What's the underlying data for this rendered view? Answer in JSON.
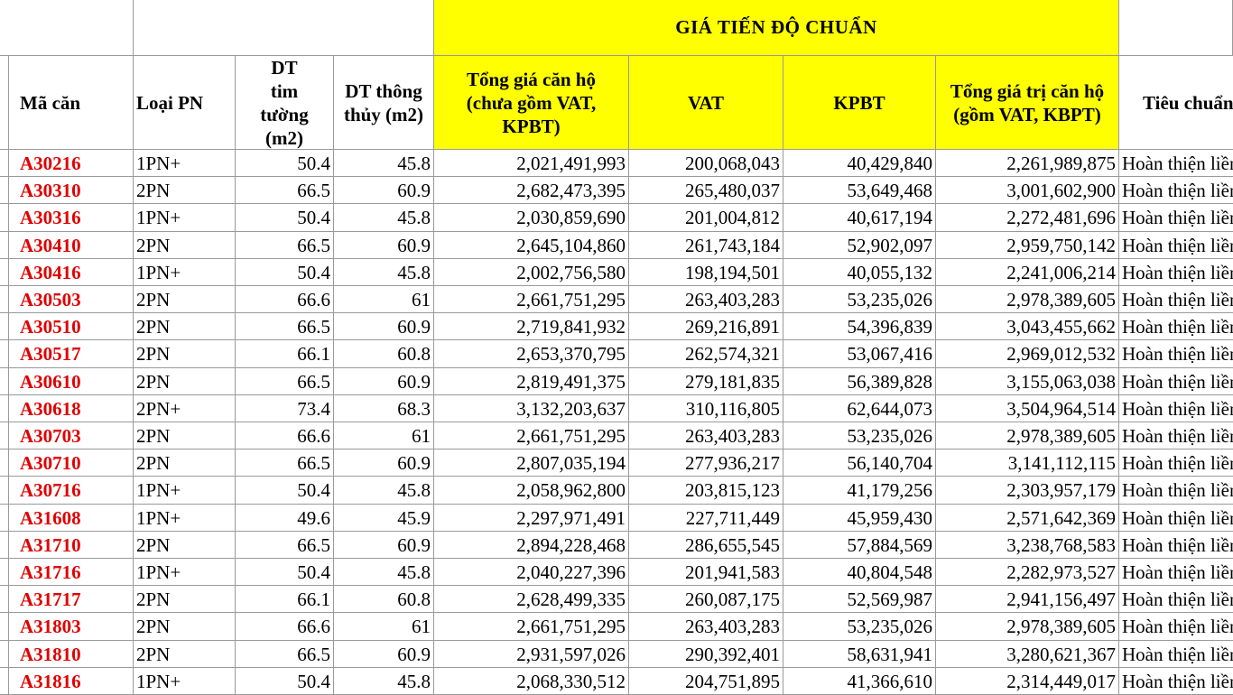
{
  "banner": {
    "title": "GIÁ TIẾN ĐỘ CHUẨN"
  },
  "headers": {
    "ma_can": "Mã căn",
    "loai_pn": "Loại PN",
    "dt_tim_tuong": "DT tim tường (m2)",
    "dt_thong_thuy": "DT thông thủy (m2)",
    "tong_gia": "Tổng giá căn hộ (chưa gồm VAT, KPBT)",
    "vat": "VAT",
    "kpbt": "KPBT",
    "tong_gia_tri": "Tổng giá trị căn hộ (gồm VAT, KBPT)",
    "tieu_chuan": "Tiêu chuẩn"
  },
  "rows": [
    {
      "ma": "A30216",
      "loai": "1PN+",
      "tim": "50.4",
      "thong": "45.8",
      "tong": "2,021,491,993",
      "vat": "200,068,043",
      "kpbt": "40,429,840",
      "tri": "2,261,989,875",
      "tc": "Hoàn thiện liền tường"
    },
    {
      "ma": "A30310",
      "loai": "2PN",
      "tim": "66.5",
      "thong": "60.9",
      "tong": "2,682,473,395",
      "vat": "265,480,037",
      "kpbt": "53,649,468",
      "tri": "3,001,602,900",
      "tc": "Hoàn thiện liền tường"
    },
    {
      "ma": "A30316",
      "loai": "1PN+",
      "tim": "50.4",
      "thong": "45.8",
      "tong": "2,030,859,690",
      "vat": "201,004,812",
      "kpbt": "40,617,194",
      "tri": "2,272,481,696",
      "tc": "Hoàn thiện liền tường"
    },
    {
      "ma": "A30410",
      "loai": "2PN",
      "tim": "66.5",
      "thong": "60.9",
      "tong": "2,645,104,860",
      "vat": "261,743,184",
      "kpbt": "52,902,097",
      "tri": "2,959,750,142",
      "tc": "Hoàn thiện liền tường"
    },
    {
      "ma": "A30416",
      "loai": "1PN+",
      "tim": "50.4",
      "thong": "45.8",
      "tong": "2,002,756,580",
      "vat": "198,194,501",
      "kpbt": "40,055,132",
      "tri": "2,241,006,214",
      "tc": "Hoàn thiện liền tường"
    },
    {
      "ma": "A30503",
      "loai": "2PN",
      "tim": "66.6",
      "thong": "61",
      "tong": "2,661,751,295",
      "vat": "263,403,283",
      "kpbt": "53,235,026",
      "tri": "2,978,389,605",
      "tc": "Hoàn thiện liền tường"
    },
    {
      "ma": "A30510",
      "loai": "2PN",
      "tim": "66.5",
      "thong": "60.9",
      "tong": "2,719,841,932",
      "vat": "269,216,891",
      "kpbt": "54,396,839",
      "tri": "3,043,455,662",
      "tc": "Hoàn thiện liền tường"
    },
    {
      "ma": "A30517",
      "loai": "2PN",
      "tim": "66.1",
      "thong": "60.8",
      "tong": "2,653,370,795",
      "vat": "262,574,321",
      "kpbt": "53,067,416",
      "tri": "2,969,012,532",
      "tc": "Hoàn thiện liền tường"
    },
    {
      "ma": "A30610",
      "loai": "2PN",
      "tim": "66.5",
      "thong": "60.9",
      "tong": "2,819,491,375",
      "vat": "279,181,835",
      "kpbt": "56,389,828",
      "tri": "3,155,063,038",
      "tc": "Hoàn thiện liền tường"
    },
    {
      "ma": "A30618",
      "loai": "2PN+",
      "tim": "73.4",
      "thong": "68.3",
      "tong": "3,132,203,637",
      "vat": "310,116,805",
      "kpbt": "62,644,073",
      "tri": "3,504,964,514",
      "tc": "Hoàn thiện liền tường"
    },
    {
      "ma": "A30703",
      "loai": "2PN",
      "tim": "66.6",
      "thong": "61",
      "tong": "2,661,751,295",
      "vat": "263,403,283",
      "kpbt": "53,235,026",
      "tri": "2,978,389,605",
      "tc": "Hoàn thiện liền tường"
    },
    {
      "ma": "A30710",
      "loai": "2PN",
      "tim": "66.5",
      "thong": "60.9",
      "tong": "2,807,035,194",
      "vat": "277,936,217",
      "kpbt": "56,140,704",
      "tri": "3,141,112,115",
      "tc": "Hoàn thiện liền tường"
    },
    {
      "ma": "A30716",
      "loai": "1PN+",
      "tim": "50.4",
      "thong": "45.8",
      "tong": "2,058,962,800",
      "vat": "203,815,123",
      "kpbt": "41,179,256",
      "tri": "2,303,957,179",
      "tc": "Hoàn thiện liền tường"
    },
    {
      "ma": "A31608",
      "loai": "1PN+",
      "tim": "49.6",
      "thong": "45.9",
      "tong": "2,297,971,491",
      "vat": "227,711,449",
      "kpbt": "45,959,430",
      "tri": "2,571,642,369",
      "tc": "Hoàn thiện liền tường"
    },
    {
      "ma": "A31710",
      "loai": "2PN",
      "tim": "66.5",
      "thong": "60.9",
      "tong": "2,894,228,468",
      "vat": "286,655,545",
      "kpbt": "57,884,569",
      "tri": "3,238,768,583",
      "tc": "Hoàn thiện liền tường"
    },
    {
      "ma": "A31716",
      "loai": "1PN+",
      "tim": "50.4",
      "thong": "45.8",
      "tong": "2,040,227,396",
      "vat": "201,941,583",
      "kpbt": "40,804,548",
      "tri": "2,282,973,527",
      "tc": "Hoàn thiện liền tường"
    },
    {
      "ma": "A31717",
      "loai": "2PN",
      "tim": "66.1",
      "thong": "60.8",
      "tong": "2,628,499,335",
      "vat": "260,087,175",
      "kpbt": "52,569,987",
      "tri": "2,941,156,497",
      "tc": "Hoàn thiện liền tường"
    },
    {
      "ma": "A31803",
      "loai": "2PN",
      "tim": "66.6",
      "thong": "61",
      "tong": "2,661,751,295",
      "vat": "263,403,283",
      "kpbt": "53,235,026",
      "tri": "2,978,389,605",
      "tc": "Hoàn thiện liền tường"
    },
    {
      "ma": "A31810",
      "loai": "2PN",
      "tim": "66.5",
      "thong": "60.9",
      "tong": "2,931,597,026",
      "vat": "290,392,401",
      "kpbt": "58,631,941",
      "tri": "3,280,621,367",
      "tc": "Hoàn thiện liền tường"
    },
    {
      "ma": "A31816",
      "loai": "1PN+",
      "tim": "50.4",
      "thong": "45.8",
      "tong": "2,068,330,512",
      "vat": "204,751,895",
      "kpbt": "41,366,610",
      "tri": "2,314,449,017",
      "tc": "Hoàn thiện liền tường"
    }
  ]
}
